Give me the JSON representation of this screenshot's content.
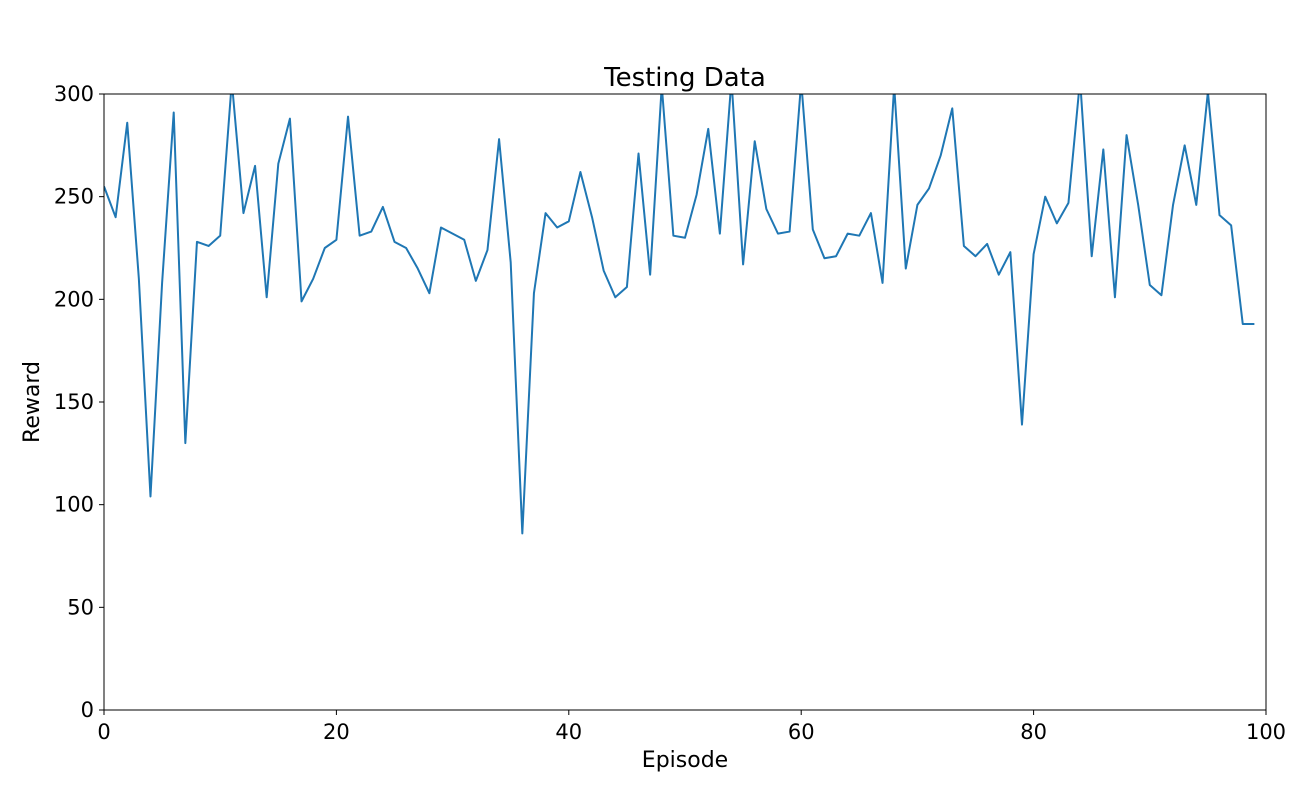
{
  "chart_data": {
    "type": "line",
    "title": "Testing Data",
    "xlabel": "Episode",
    "ylabel": "Reward",
    "xlim": [
      0,
      100
    ],
    "ylim": [
      0,
      300
    ],
    "xticks": [
      0,
      20,
      40,
      60,
      80,
      100
    ],
    "yticks": [
      0,
      50,
      100,
      150,
      200,
      250,
      300
    ],
    "grid": false,
    "line_color": "#1f77b4",
    "series": [
      {
        "values": [
          255,
          240,
          286,
          210,
          104,
          208,
          291,
          130,
          228,
          226,
          231,
          306,
          242,
          265,
          201,
          266,
          288,
          199,
          210,
          225,
          229,
          289,
          231,
          233,
          245,
          228,
          225,
          215,
          203,
          235,
          232,
          229,
          209,
          224,
          278,
          218,
          86,
          203,
          242,
          235,
          238,
          262,
          240,
          214,
          201,
          206,
          271,
          212,
          304,
          231,
          230,
          251,
          283,
          232,
          307,
          217,
          277,
          244,
          232,
          233,
          306,
          234,
          220,
          221,
          232,
          231,
          242,
          208,
          304,
          215,
          246,
          254,
          270,
          293,
          226,
          221,
          227,
          212,
          223,
          139,
          222,
          250,
          237,
          247,
          307,
          221,
          273,
          201,
          280,
          246,
          207,
          202,
          246,
          275,
          246,
          301,
          241,
          236,
          188,
          188
        ]
      }
    ]
  }
}
